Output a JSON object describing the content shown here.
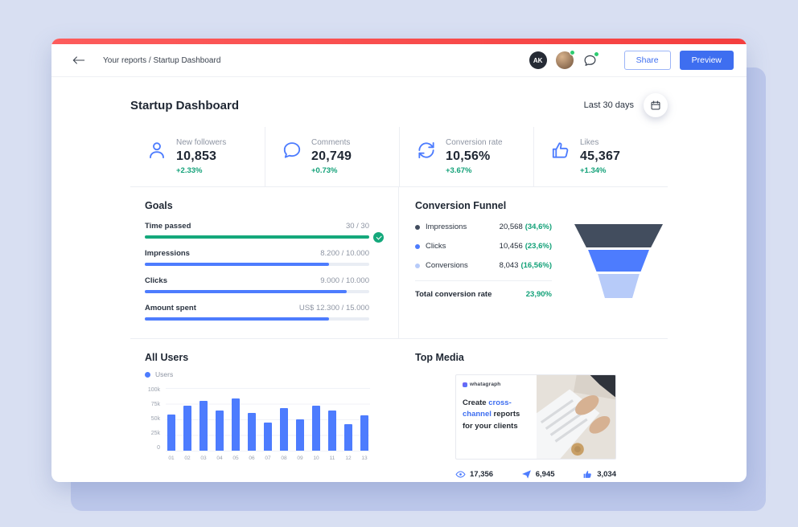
{
  "colors": {
    "accent_blue": "#4d7cfe",
    "button_blue": "#3e6ef0",
    "positive_green": "#12a178",
    "accent_red": "#f84c4c",
    "funnel_dark": "#424d5e",
    "funnel_blue": "#4d7cfe",
    "funnel_light": "#b7cbf9"
  },
  "topbar": {
    "breadcrumb": "Your reports / Startup Dashboard",
    "avatar_initials": "AK",
    "share_label": "Share",
    "preview_label": "Preview"
  },
  "page": {
    "title": "Startup Dashboard",
    "date_range": "Last 30 days"
  },
  "stats": [
    {
      "icon": "user-icon",
      "label": "New followers",
      "value": "10,853",
      "change": "+2.33%"
    },
    {
      "icon": "comment-icon",
      "label": "Comments",
      "value": "20,749",
      "change": "+0.73%"
    },
    {
      "icon": "conversion-icon",
      "label": "Conversion rate",
      "value": "10,56%",
      "change": "+3.67%"
    },
    {
      "icon": "thumbs-up-icon",
      "label": "Likes",
      "value": "45,367",
      "change": "+1.34%"
    }
  ],
  "goals": {
    "title": "Goals",
    "items": [
      {
        "label": "Time passed",
        "value": "30 / 30",
        "percent": 100,
        "status": "complete"
      },
      {
        "label": "Impressions",
        "value": "8.200 / 10.000",
        "percent": 82,
        "status": "active"
      },
      {
        "label": "Clicks",
        "value": "9.000 / 10.000",
        "percent": 90,
        "status": "active"
      },
      {
        "label": "Amount spent",
        "value": "US$ 12.300 / 15.000",
        "percent": 82,
        "status": "active"
      }
    ]
  },
  "funnel": {
    "title": "Conversion Funnel",
    "rows": [
      {
        "label": "Impressions",
        "value": "20,568",
        "share": "(34,6%)"
      },
      {
        "label": "Clicks",
        "value": "10,456",
        "share": "(23,6%)"
      },
      {
        "label": "Conversions",
        "value": "8,043",
        "share": "(16,56%)"
      }
    ],
    "total_label": "Total conversion rate",
    "total_value": "23,90%"
  },
  "all_users": {
    "title": "All Users",
    "legend": "Users"
  },
  "top_media": {
    "title": "Top Media",
    "brand": "whatagraph",
    "headline_prefix": "Create ",
    "headline_highlight": "cross-channel",
    "headline_suffix": " reports for your clients",
    "stats": [
      {
        "icon": "eye-icon",
        "value": "17,356"
      },
      {
        "icon": "paper-plane-icon",
        "value": "6,945"
      },
      {
        "icon": "thumbs-up-icon",
        "value": "3,034"
      }
    ]
  },
  "chart_data": [
    {
      "type": "bar",
      "title": "All Users",
      "legend": [
        "Users"
      ],
      "categories": [
        "01",
        "02",
        "03",
        "04",
        "05",
        "06",
        "07",
        "08",
        "09",
        "10",
        "11",
        "12",
        "13"
      ],
      "values": [
        58000,
        72000,
        80000,
        64000,
        83000,
        60000,
        45000,
        68000,
        50000,
        72000,
        64000,
        42000,
        57000
      ],
      "xlabel": "",
      "ylabel": "",
      "ylim": [
        0,
        100000
      ],
      "yticks": [
        "100k",
        "75k",
        "50k",
        "25k",
        "0"
      ],
      "grid": true,
      "bar_color": "#4d7cfe"
    },
    {
      "type": "funnel",
      "title": "Conversion Funnel",
      "stages": [
        {
          "label": "Impressions",
          "value": 20568,
          "share_pct": 34.6,
          "color": "#424d5e"
        },
        {
          "label": "Clicks",
          "value": 10456,
          "share_pct": 23.6,
          "color": "#4d7cfe"
        },
        {
          "label": "Conversions",
          "value": 8043,
          "share_pct": 16.56,
          "color": "#b7cbf9"
        }
      ],
      "total_conversion_rate_pct": 23.9
    }
  ]
}
